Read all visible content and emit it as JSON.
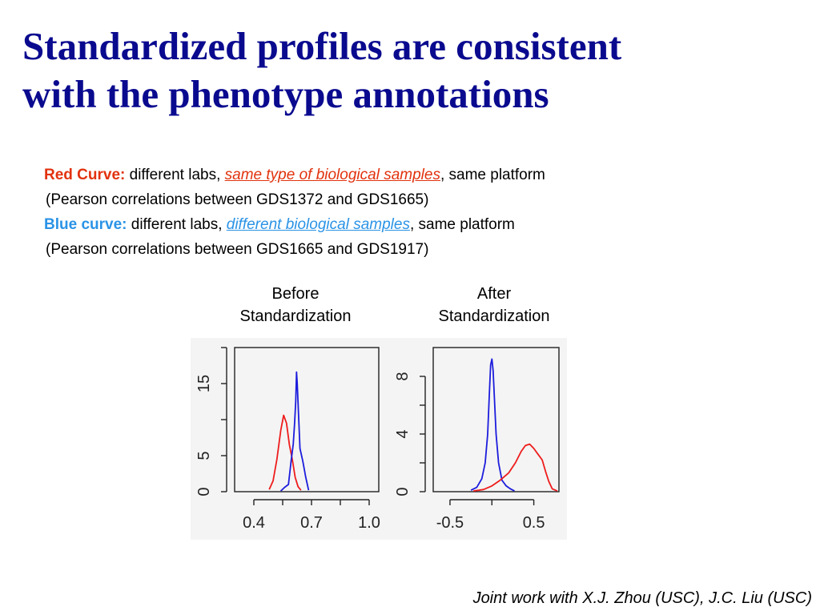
{
  "title": {
    "line1": "Standardized profiles are consistent",
    "line2": "with the phenotype annotations"
  },
  "legend": {
    "red": {
      "label": "Red Curve:",
      "pre": " different labs, ",
      "link": "same type of biological samples",
      "post": ", same platform",
      "sub": "(Pearson correlations between GDS1372 and GDS1665)"
    },
    "blue": {
      "label": "Blue curve:",
      "pre": " different labs, ",
      "link": "different biological samples",
      "post": ", same platform",
      "sub": "(Pearson correlations between GDS1665 and GDS1917)"
    }
  },
  "captions": {
    "before": [
      "Before",
      "Standardization"
    ],
    "after": [
      "After",
      "Standardization"
    ]
  },
  "footer": "Joint work with X.J. Zhou (USC), J.C. Liu (USC)",
  "colors": {
    "title": "#0a0a8f",
    "red_curve": "#ee1c1c",
    "blue_curve": "#1c1cdd"
  },
  "chart_data": [
    {
      "type": "line",
      "panel": "before",
      "xlim": [
        0.3,
        1.05
      ],
      "ylim": [
        0,
        20
      ],
      "xticks": [
        0.4,
        0.55,
        0.7,
        0.85,
        1.0
      ],
      "xtick_labels": [
        "0.4",
        "0.7",
        "1.0"
      ],
      "xtick_label_values": [
        0.4,
        0.7,
        1.0
      ],
      "yticks": [
        0,
        5,
        10,
        15,
        20
      ],
      "ytick_labels": [
        "0",
        "5",
        "15"
      ],
      "ytick_label_values": [
        0,
        5,
        15
      ],
      "series": [
        {
          "color": "red",
          "x": [
            0.48,
            0.5,
            0.52,
            0.54,
            0.555,
            0.57,
            0.585,
            0.6,
            0.615,
            0.63,
            0.645
          ],
          "y": [
            0.3,
            1.5,
            4.5,
            8.5,
            10.6,
            9.5,
            6.5,
            4.5,
            2.0,
            0.7,
            0.2
          ]
        },
        {
          "color": "blue",
          "x": [
            0.54,
            0.56,
            0.58,
            0.595,
            0.605,
            0.612,
            0.618,
            0.622,
            0.626,
            0.632,
            0.64,
            0.655,
            0.67,
            0.685
          ],
          "y": [
            0.1,
            0.6,
            1.0,
            4.5,
            6.6,
            9.5,
            12.5,
            16.6,
            15.0,
            11.0,
            6.0,
            4.2,
            2.0,
            0.2
          ]
        }
      ]
    },
    {
      "type": "line",
      "panel": "after",
      "xlim": [
        -0.7,
        0.8
      ],
      "ylim": [
        0,
        10
      ],
      "xticks": [
        -0.5,
        0.0,
        0.5
      ],
      "xtick_labels": [
        "-0.5",
        "0.5"
      ],
      "xtick_label_values": [
        -0.5,
        0.5
      ],
      "yticks": [
        0,
        2,
        4,
        6,
        8
      ],
      "ytick_labels": [
        "0",
        "4",
        "8"
      ],
      "ytick_label_values": [
        0,
        4,
        8
      ],
      "series": [
        {
          "color": "blue",
          "x": [
            -0.25,
            -0.18,
            -0.12,
            -0.08,
            -0.05,
            -0.03,
            -0.015,
            0.0,
            0.015,
            0.03,
            0.05,
            0.08,
            0.12,
            0.17,
            0.22,
            0.27
          ],
          "y": [
            0.1,
            0.3,
            0.9,
            2.0,
            4.0,
            6.8,
            8.8,
            9.2,
            8.4,
            6.5,
            4.0,
            2.0,
            0.8,
            0.4,
            0.2,
            0.05
          ]
        },
        {
          "color": "red",
          "x": [
            -0.22,
            -0.1,
            0.0,
            0.1,
            0.2,
            0.28,
            0.35,
            0.4,
            0.45,
            0.5,
            0.55,
            0.6,
            0.64,
            0.68,
            0.72,
            0.78
          ],
          "y": [
            0.05,
            0.15,
            0.4,
            0.8,
            1.3,
            2.0,
            2.8,
            3.2,
            3.3,
            3.0,
            2.6,
            2.2,
            1.4,
            0.7,
            0.2,
            0.05
          ]
        }
      ]
    }
  ]
}
